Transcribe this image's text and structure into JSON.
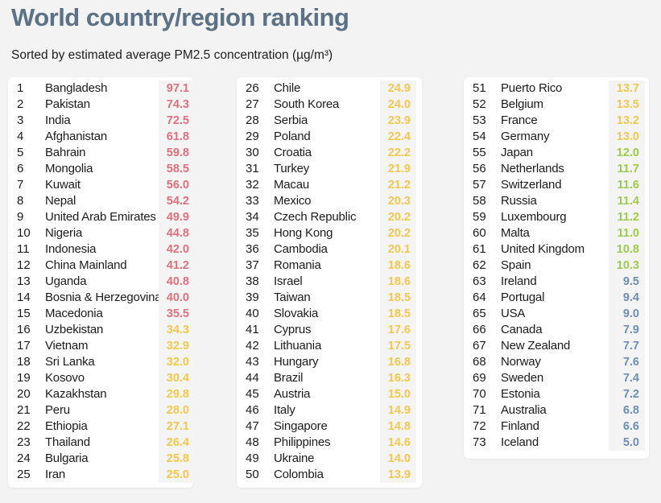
{
  "header": {
    "title": "World country/region ranking",
    "subtitle": "Sorted by estimated average PM2.5 concentration (µg/m³)"
  },
  "colors": {
    "red": "#e0707e",
    "yellow": "#f2c94c",
    "green": "#9ccc4a",
    "blue": "#6a8fb8"
  },
  "chart_data": {
    "type": "table",
    "title": "World country/region ranking",
    "subtitle": "Sorted by estimated average PM2.5 concentration (µg/m³)",
    "columns": [
      [
        {
          "rank": "1",
          "country": "Bangladesh",
          "value": "97.1",
          "color": "red"
        },
        {
          "rank": "2",
          "country": "Pakistan",
          "value": "74.3",
          "color": "red"
        },
        {
          "rank": "3",
          "country": "India",
          "value": "72.5",
          "color": "red"
        },
        {
          "rank": "4",
          "country": "Afghanistan",
          "value": "61.8",
          "color": "red"
        },
        {
          "rank": "5",
          "country": "Bahrain",
          "value": "59.8",
          "color": "red"
        },
        {
          "rank": "6",
          "country": "Mongolia",
          "value": "58.5",
          "color": "red"
        },
        {
          "rank": "7",
          "country": "Kuwait",
          "value": "56.0",
          "color": "red"
        },
        {
          "rank": "8",
          "country": "Nepal",
          "value": "54.2",
          "color": "red"
        },
        {
          "rank": "9",
          "country": "United Arab Emirates",
          "value": "49.9",
          "color": "red"
        },
        {
          "rank": "10",
          "country": "Nigeria",
          "value": "44.8",
          "color": "red"
        },
        {
          "rank": "11",
          "country": "Indonesia",
          "value": "42.0",
          "color": "red"
        },
        {
          "rank": "12",
          "country": "China Mainland",
          "value": "41.2",
          "color": "red"
        },
        {
          "rank": "13",
          "country": "Uganda",
          "value": "40.8",
          "color": "red"
        },
        {
          "rank": "14",
          "country": "Bosnia & Herzegovina",
          "value": "40.0",
          "color": "red"
        },
        {
          "rank": "15",
          "country": "Macedonia",
          "value": "35.5",
          "color": "red"
        },
        {
          "rank": "16",
          "country": "Uzbekistan",
          "value": "34.3",
          "color": "yellow"
        },
        {
          "rank": "17",
          "country": "Vietnam",
          "value": "32.9",
          "color": "yellow"
        },
        {
          "rank": "18",
          "country": "Sri Lanka",
          "value": "32.0",
          "color": "yellow"
        },
        {
          "rank": "19",
          "country": "Kosovo",
          "value": "30.4",
          "color": "yellow"
        },
        {
          "rank": "20",
          "country": "Kazakhstan",
          "value": "29.8",
          "color": "yellow"
        },
        {
          "rank": "21",
          "country": "Peru",
          "value": "28.0",
          "color": "yellow"
        },
        {
          "rank": "22",
          "country": "Ethiopia",
          "value": "27.1",
          "color": "yellow"
        },
        {
          "rank": "23",
          "country": "Thailand",
          "value": "26.4",
          "color": "yellow"
        },
        {
          "rank": "24",
          "country": "Bulgaria",
          "value": "25.8",
          "color": "yellow"
        },
        {
          "rank": "25",
          "country": "Iran",
          "value": "25.0",
          "color": "yellow"
        }
      ],
      [
        {
          "rank": "26",
          "country": "Chile",
          "value": "24.9",
          "color": "yellow"
        },
        {
          "rank": "27",
          "country": "South Korea",
          "value": "24.0",
          "color": "yellow"
        },
        {
          "rank": "28",
          "country": "Serbia",
          "value": "23.9",
          "color": "yellow"
        },
        {
          "rank": "29",
          "country": "Poland",
          "value": "22.4",
          "color": "yellow"
        },
        {
          "rank": "30",
          "country": "Croatia",
          "value": "22.2",
          "color": "yellow"
        },
        {
          "rank": "31",
          "country": "Turkey",
          "value": "21.9",
          "color": "yellow"
        },
        {
          "rank": "32",
          "country": "Macau",
          "value": "21.2",
          "color": "yellow"
        },
        {
          "rank": "33",
          "country": "Mexico",
          "value": "20.3",
          "color": "yellow"
        },
        {
          "rank": "34",
          "country": "Czech Republic",
          "value": "20.2",
          "color": "yellow"
        },
        {
          "rank": "35",
          "country": "Hong Kong",
          "value": "20.2",
          "color": "yellow"
        },
        {
          "rank": "36",
          "country": "Cambodia",
          "value": "20.1",
          "color": "yellow"
        },
        {
          "rank": "37",
          "country": "Romania",
          "value": "18.6",
          "color": "yellow"
        },
        {
          "rank": "38",
          "country": "Israel",
          "value": "18.6",
          "color": "yellow"
        },
        {
          "rank": "39",
          "country": "Taiwan",
          "value": "18.5",
          "color": "yellow"
        },
        {
          "rank": "40",
          "country": "Slovakia",
          "value": "18.5",
          "color": "yellow"
        },
        {
          "rank": "41",
          "country": "Cyprus",
          "value": "17.6",
          "color": "yellow"
        },
        {
          "rank": "42",
          "country": "Lithuania",
          "value": "17.5",
          "color": "yellow"
        },
        {
          "rank": "43",
          "country": "Hungary",
          "value": "16.8",
          "color": "yellow"
        },
        {
          "rank": "44",
          "country": "Brazil",
          "value": "16.3",
          "color": "yellow"
        },
        {
          "rank": "45",
          "country": "Austria",
          "value": "15.0",
          "color": "yellow"
        },
        {
          "rank": "46",
          "country": "Italy",
          "value": "14.9",
          "color": "yellow"
        },
        {
          "rank": "47",
          "country": "Singapore",
          "value": "14.8",
          "color": "yellow"
        },
        {
          "rank": "48",
          "country": "Philippines",
          "value": "14.6",
          "color": "yellow"
        },
        {
          "rank": "49",
          "country": "Ukraine",
          "value": "14.0",
          "color": "yellow"
        },
        {
          "rank": "50",
          "country": "Colombia",
          "value": "13.9",
          "color": "yellow"
        }
      ],
      [
        {
          "rank": "51",
          "country": "Puerto Rico",
          "value": "13.7",
          "color": "yellow"
        },
        {
          "rank": "52",
          "country": "Belgium",
          "value": "13.5",
          "color": "yellow"
        },
        {
          "rank": "53",
          "country": "France",
          "value": "13.2",
          "color": "yellow"
        },
        {
          "rank": "54",
          "country": "Germany",
          "value": "13.0",
          "color": "yellow"
        },
        {
          "rank": "55",
          "country": "Japan",
          "value": "12.0",
          "color": "green"
        },
        {
          "rank": "56",
          "country": "Netherlands",
          "value": "11.7",
          "color": "green"
        },
        {
          "rank": "57",
          "country": "Switzerland",
          "value": "11.6",
          "color": "green"
        },
        {
          "rank": "58",
          "country": "Russia",
          "value": "11.4",
          "color": "green"
        },
        {
          "rank": "59",
          "country": "Luxembourg",
          "value": "11.2",
          "color": "green"
        },
        {
          "rank": "60",
          "country": "Malta",
          "value": "11.0",
          "color": "green"
        },
        {
          "rank": "61",
          "country": "United Kingdom",
          "value": "10.8",
          "color": "green"
        },
        {
          "rank": "62",
          "country": "Spain",
          "value": "10.3",
          "color": "green"
        },
        {
          "rank": "63",
          "country": "Ireland",
          "value": "9.5",
          "color": "blue"
        },
        {
          "rank": "64",
          "country": "Portugal",
          "value": "9.4",
          "color": "blue"
        },
        {
          "rank": "65",
          "country": "USA",
          "value": "9.0",
          "color": "blue"
        },
        {
          "rank": "66",
          "country": "Canada",
          "value": "7.9",
          "color": "blue"
        },
        {
          "rank": "67",
          "country": "New Zealand",
          "value": "7.7",
          "color": "blue"
        },
        {
          "rank": "68",
          "country": "Norway",
          "value": "7.6",
          "color": "blue"
        },
        {
          "rank": "69",
          "country": "Sweden",
          "value": "7.4",
          "color": "blue"
        },
        {
          "rank": "70",
          "country": "Estonia",
          "value": "7.2",
          "color": "blue"
        },
        {
          "rank": "71",
          "country": "Australia",
          "value": "6.8",
          "color": "blue"
        },
        {
          "rank": "72",
          "country": "Finland",
          "value": "6.6",
          "color": "blue"
        },
        {
          "rank": "73",
          "country": "Iceland",
          "value": "5.0",
          "color": "blue"
        }
      ]
    ]
  }
}
